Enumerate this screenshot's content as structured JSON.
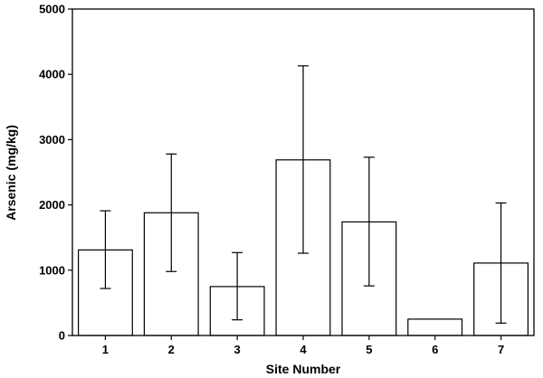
{
  "chart_data": {
    "type": "bar",
    "title": "",
    "xlabel": "Site Number",
    "ylabel": "Arsenic (mg/kg)",
    "categories": [
      "1",
      "2",
      "3",
      "4",
      "5",
      "6",
      "7"
    ],
    "values": [
      1310,
      1880,
      750,
      2690,
      1740,
      250,
      1110
    ],
    "error_low": [
      720,
      980,
      240,
      1260,
      760,
      250,
      190
    ],
    "error_high": [
      1910,
      2780,
      1270,
      4130,
      2730,
      250,
      2030
    ],
    "ylim": [
      0,
      5000
    ],
    "yticks": [
      "0",
      "1000",
      "2000",
      "3000",
      "4000",
      "5000"
    ],
    "grid": false,
    "colors": {
      "bar_fill": "#ffffff",
      "stroke": "#000000"
    }
  }
}
